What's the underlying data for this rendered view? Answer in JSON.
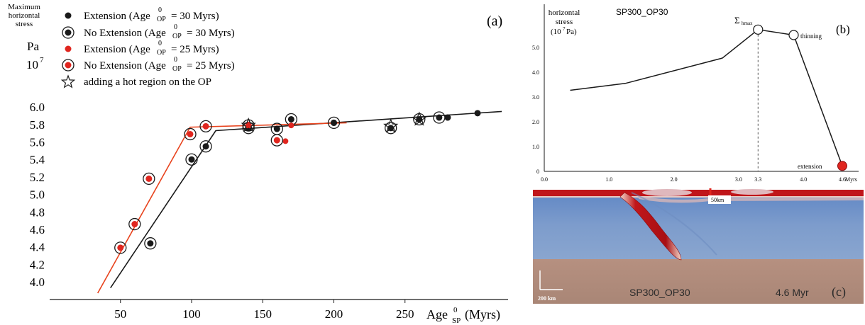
{
  "colors": {
    "black": "#1a1a1a",
    "red": "#e0261f",
    "orange_line": "#e8431d",
    "sim_blue": "#8aa6cf",
    "sim_red": "#c0161a",
    "sim_mantle": "#b0897a"
  },
  "panel_a": {
    "ylabel_line1": "Maximum",
    "ylabel_line2": "horizontal",
    "ylabel_line3": "stress",
    "unit_pa": "Pa",
    "unit_exp": "10",
    "unit_exp_power": "7",
    "panel_label": "(a)",
    "xlabel_main": "Age",
    "xlabel_sup": "0",
    "xlabel_sub": "SP",
    "xlabel_units": "(Myrs)",
    "legend": [
      {
        "label_pre": "Extension (Age",
        "sup": "0",
        "sub": "OP",
        "label_post": "= 30 Myrs)",
        "marker": "black-dot"
      },
      {
        "label_pre": "No Extension (Age",
        "sup": "0",
        "sub": "OP",
        "label_post": "= 30 Myrs)",
        "marker": "black-ringed"
      },
      {
        "label_pre": "Extension (Age",
        "sup": "0",
        "sub": "OP",
        "label_post": "= 25 Myrs)",
        "marker": "red-dot"
      },
      {
        "label_pre": "No Extension (Age",
        "sup": "0",
        "sub": "OP",
        "label_post": "= 25 Myrs)",
        "marker": "red-ringed"
      },
      {
        "label_pre": "adding a hot region on the OP",
        "sup": "",
        "sub": "",
        "label_post": "",
        "marker": "star"
      }
    ]
  },
  "panel_b": {
    "title": "SP300_OP30",
    "ylabel_line1": "horizontal",
    "ylabel_line2": "stress",
    "ylabel_line3": "(10",
    "ylabel_exp": "7",
    "ylabel_line3b": "Pa)",
    "panel_label": "(b)",
    "sigma": "Σ",
    "sigma_sub": "hmax",
    "thinning": "thinning",
    "extension": "extension",
    "x_unit": "Myrs",
    "special_tick": "3.3"
  },
  "panel_c": {
    "panel_label": "(c)",
    "scale_label": "50km",
    "scale_bar_label": "200 km",
    "model_name": "SP300_OP30",
    "time": "4.6 Myr"
  },
  "chart_data": [
    {
      "type": "scatter",
      "title": "",
      "xlabel": "Age SP 0 (Myrs)",
      "ylabel": "Maximum horizontal stress (Pa ×10^7)",
      "xlim": [
        8,
        320
      ],
      "ylim": [
        3.83,
        6.12
      ],
      "xticks": [
        50,
        100,
        150,
        200,
        250
      ],
      "yticks": [
        4.0,
        4.2,
        4.4,
        4.6,
        4.8,
        5.0,
        5.2,
        5.4,
        5.6,
        5.8,
        6.0
      ],
      "grid": false,
      "legend_position": "top-left",
      "series": [
        {
          "name": "Extension (Age OP 0 = 30 Myrs)",
          "marker": "black-dot",
          "x": [
            200,
            280,
            301
          ],
          "y": [
            5.82,
            5.88,
            5.93
          ]
        },
        {
          "name": "No Extension (Age OP 0 = 30 Myrs)",
          "marker": "black-ringed",
          "x": [
            71,
            100,
            110,
            140,
            160,
            170,
            200,
            240,
            260,
            274
          ],
          "y": [
            4.44,
            5.4,
            5.55,
            5.76,
            5.75,
            5.86,
            5.82,
            5.76,
            5.86,
            5.88
          ]
        },
        {
          "name": "Extension (Age OP 0 = 25 Myrs)",
          "marker": "red-dot",
          "x": [
            140,
            166,
            170
          ],
          "y": [
            5.8,
            5.61,
            5.79
          ]
        },
        {
          "name": "No Extension (Age OP 0 = 25 Myrs)",
          "marker": "red-ringed",
          "x": [
            50,
            60,
            70,
            99,
            110,
            140,
            160
          ],
          "y": [
            4.39,
            4.66,
            5.18,
            5.69,
            5.78,
            5.79,
            5.62
          ]
        },
        {
          "name": "adding a hot region on the OP",
          "marker": "star",
          "x": [
            140,
            240,
            260
          ],
          "y": [
            5.79,
            5.78,
            5.86
          ]
        }
      ],
      "trend_lines": [
        {
          "color": "black",
          "x": [
            43,
            117,
            318
          ],
          "y": [
            3.93,
            5.73,
            5.95
          ]
        },
        {
          "color": "orange",
          "x": [
            34,
            99,
            209
          ],
          "y": [
            3.87,
            5.77,
            5.82
          ]
        }
      ]
    },
    {
      "type": "line",
      "title": "SP300_OP30",
      "xlabel": "Myrs",
      "ylabel": "horizontal stress (10^7 Pa)",
      "xlim": [
        0,
        4.8
      ],
      "ylim": [
        0,
        6.0
      ],
      "xticks": [
        0.0,
        1.0,
        2.0,
        3.0,
        3.3,
        4.0,
        4.6
      ],
      "yticks": [
        0,
        1.0,
        2.0,
        3.0,
        4.0,
        5.0
      ],
      "grid": false,
      "x": [
        0.4,
        1.25,
        2.75,
        3.3,
        3.85,
        4.6
      ],
      "y": [
        3.27,
        3.55,
        4.57,
        5.72,
        5.5,
        0.22
      ],
      "annotations": [
        {
          "x": 3.3,
          "y": 5.72,
          "text": "Σhmax",
          "marker": "open-circle"
        },
        {
          "x": 3.85,
          "y": 5.5,
          "text": "thinning",
          "marker": "open-circle"
        },
        {
          "x": 4.6,
          "y": 0.22,
          "text": "extension",
          "marker": "red-dot"
        }
      ]
    }
  ]
}
